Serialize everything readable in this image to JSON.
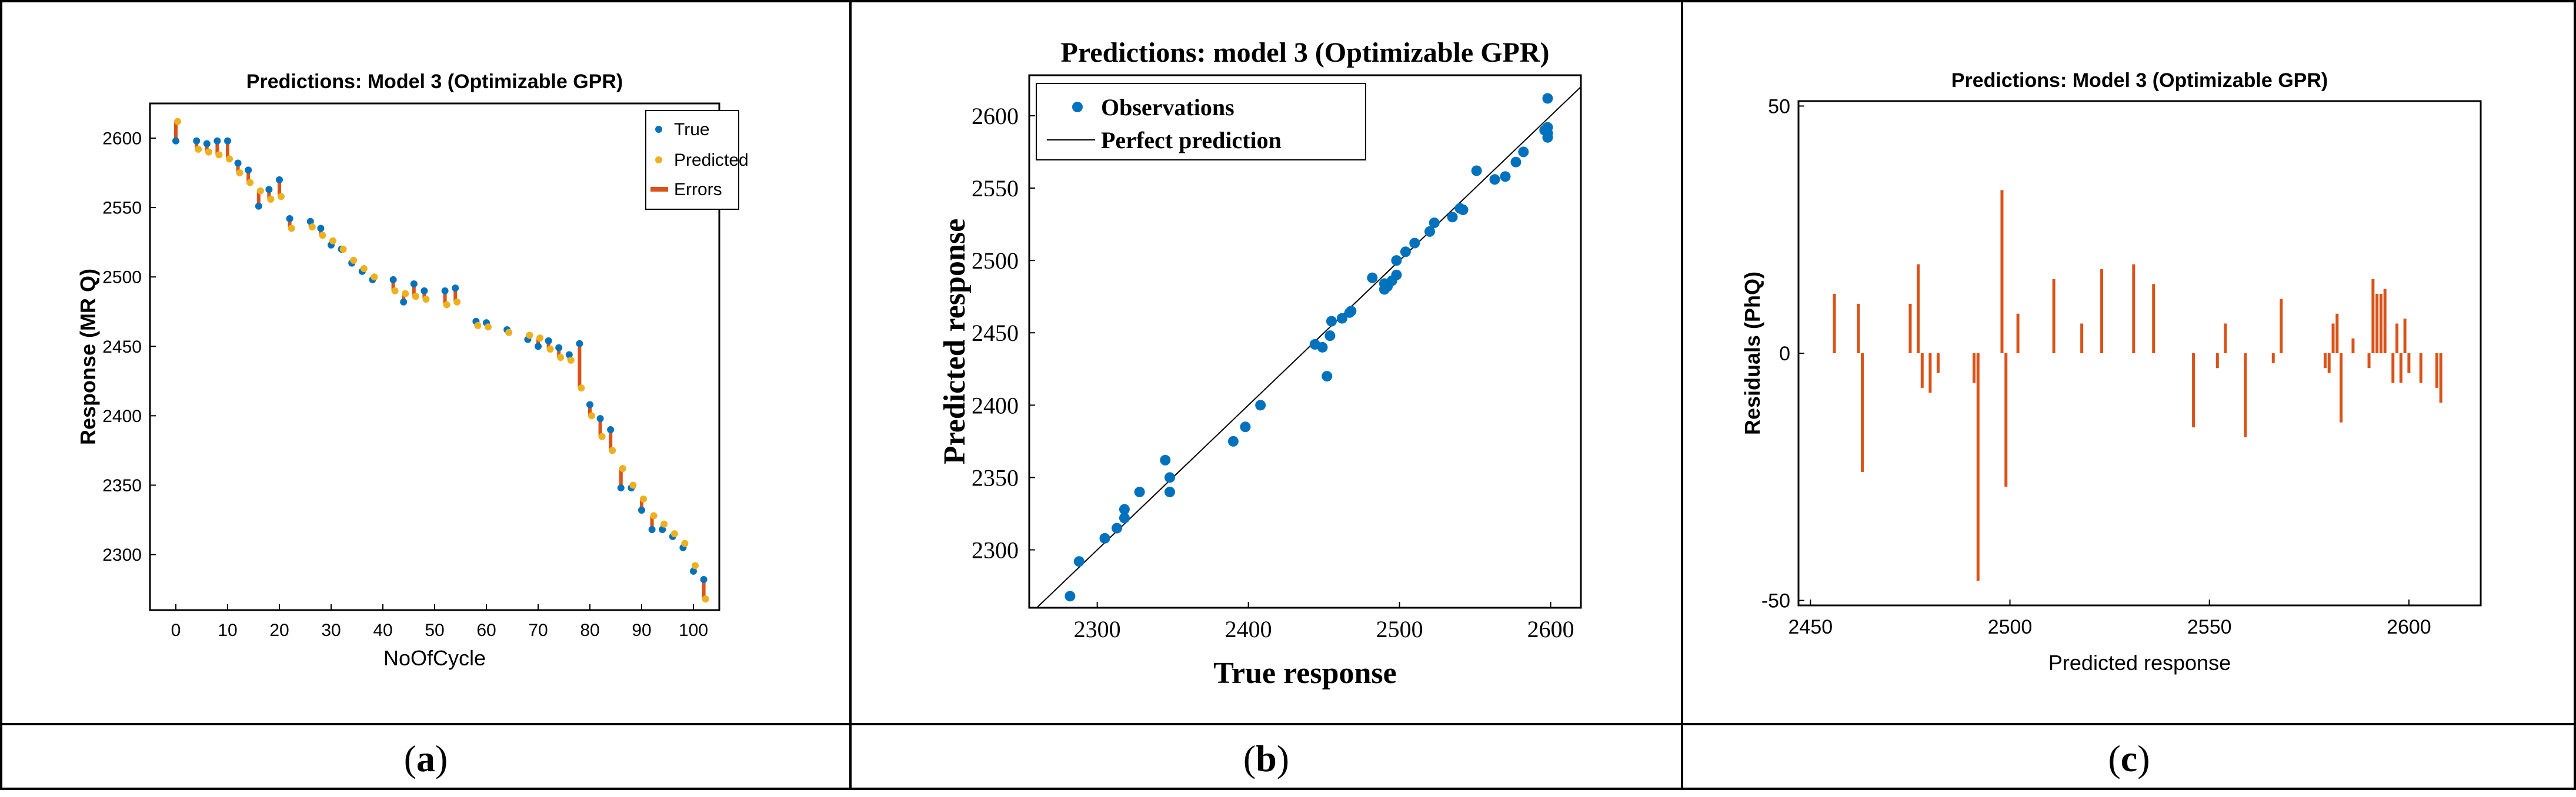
{
  "figure": {
    "labels": [
      "a",
      "b",
      "c"
    ]
  },
  "chart_data": [
    {
      "type": "scatter",
      "title": "Predictions: Model 3 (Optimizable GPR)",
      "xlabel": "NoOfCycle",
      "ylabel": "Response (MR Q)",
      "xlim": [
        -5,
        105
      ],
      "ylim": [
        2260,
        2625
      ],
      "xticks": [
        0,
        10,
        20,
        30,
        40,
        50,
        60,
        70,
        80,
        90,
        100
      ],
      "yticks": [
        2300,
        2350,
        2400,
        2450,
        2500,
        2550,
        2600
      ],
      "legend": [
        "True",
        "Predicted",
        "Errors"
      ],
      "legend_position": "top-right",
      "colors": {
        "true": "#0072bd",
        "predicted": "#edb120",
        "errors": "#d95319"
      },
      "series": [
        {
          "name": "points",
          "x": [
            0,
            4,
            6,
            8,
            10,
            12,
            14,
            16,
            18,
            20,
            22,
            26,
            28,
            30,
            32,
            34,
            36,
            38,
            42,
            44,
            46,
            48,
            52,
            54,
            58,
            60,
            64,
            68,
            70,
            72,
            74,
            76,
            78,
            80,
            82,
            84,
            86,
            88,
            90,
            92,
            94,
            96,
            98,
            100,
            102
          ],
          "true": [
            2598,
            2598,
            2596,
            2598,
            2598,
            2582,
            2577,
            2551,
            2563,
            2570,
            2542,
            2540,
            2535,
            2523,
            2520,
            2510,
            2504,
            2498,
            2498,
            2482,
            2495,
            2490,
            2490,
            2492,
            2468,
            2467,
            2462,
            2455,
            2450,
            2454,
            2449,
            2444,
            2452,
            2408,
            2398,
            2390,
            2348,
            2348,
            2332,
            2318,
            2318,
            2313,
            2305,
            2288,
            2282
          ],
          "predicted": [
            2612,
            2592,
            2590,
            2588,
            2585,
            2575,
            2568,
            2562,
            2556,
            2558,
            2535,
            2536,
            2530,
            2526,
            2520,
            2512,
            2506,
            2500,
            2490,
            2488,
            2486,
            2484,
            2480,
            2482,
            2465,
            2464,
            2460,
            2458,
            2456,
            2448,
            2442,
            2440,
            2420,
            2400,
            2385,
            2375,
            2362,
            2350,
            2340,
            2328,
            2322,
            2315,
            2308,
            2292,
            2268
          ]
        }
      ]
    },
    {
      "type": "scatter",
      "title": "Predictions: model 3 (Optimizable GPR)",
      "xlabel": "True response",
      "ylabel": "Predicted response",
      "xlim": [
        2255,
        2620
      ],
      "ylim": [
        2260,
        2628
      ],
      "xticks": [
        2300,
        2400,
        2500,
        2600
      ],
      "yticks": [
        2300,
        2350,
        2400,
        2450,
        2500,
        2550,
        2600
      ],
      "legend": [
        "Observations",
        "Perfect prediction"
      ],
      "legend_position": "top-left",
      "colors": {
        "observations": "#0072bd",
        "line": "#000000"
      },
      "series": [
        {
          "name": "Observations",
          "x": [
            2282,
            2288,
            2305,
            2313,
            2318,
            2318,
            2328,
            2345,
            2348,
            2348,
            2390,
            2398,
            2408,
            2444,
            2449,
            2452,
            2454,
            2455,
            2462,
            2467,
            2468,
            2482,
            2490,
            2490,
            2492,
            2495,
            2498,
            2498,
            2504,
            2510,
            2520,
            2523,
            2535,
            2540,
            2542,
            2551,
            2563,
            2570,
            2577,
            2582,
            2598,
            2598,
            2598,
            2596,
            2598
          ],
          "y": [
            2268,
            2292,
            2308,
            2315,
            2328,
            2322,
            2340,
            2362,
            2350,
            2340,
            2375,
            2385,
            2400,
            2442,
            2440,
            2420,
            2448,
            2458,
            2460,
            2464,
            2465,
            2488,
            2484,
            2480,
            2482,
            2486,
            2490,
            2500,
            2506,
            2512,
            2520,
            2526,
            2530,
            2536,
            2535,
            2562,
            2556,
            2558,
            2568,
            2575,
            2612,
            2592,
            2588,
            2590,
            2585
          ]
        },
        {
          "name": "Perfect prediction",
          "x": [
            2255,
            2620
          ],
          "y": [
            2255,
            2620
          ]
        }
      ]
    },
    {
      "type": "bar",
      "title": "Predictions: Model 3 (Optimizable GPR)",
      "xlabel": "Predicted response",
      "ylabel": "Residuals (PhQ)",
      "xlim": [
        2447,
        2618
      ],
      "ylim": [
        -51,
        51
      ],
      "xticks": [
        2450,
        2500,
        2550,
        2600
      ],
      "yticks": [
        -50,
        0,
        50
      ],
      "colors": {
        "bars": "#d95319"
      },
      "series": [
        {
          "name": "Residuals",
          "x": [
            2456,
            2462,
            2463,
            2475,
            2477,
            2478,
            2480,
            2482,
            2491,
            2492,
            2498,
            2499,
            2502,
            2511,
            2518,
            2523,
            2531,
            2536,
            2546,
            2552,
            2554,
            2559,
            2566,
            2568,
            2579,
            2580,
            2581,
            2582,
            2583,
            2586,
            2590,
            2591,
            2592,
            2593,
            2594,
            2596,
            2597,
            2598,
            2599,
            2600,
            2603,
            2607,
            2608
          ],
          "values": [
            12,
            10,
            -24,
            10,
            18,
            -7,
            -8,
            -4,
            -6,
            -46,
            33,
            -27,
            8,
            15,
            6,
            17,
            18,
            14,
            -15,
            -3,
            6,
            -17,
            -2,
            11,
            -3,
            -4,
            6,
            8,
            -14,
            3,
            -3,
            15,
            12,
            12,
            13,
            -6,
            6,
            -6,
            7,
            -4,
            -6,
            -7,
            -10
          ]
        }
      ]
    }
  ]
}
